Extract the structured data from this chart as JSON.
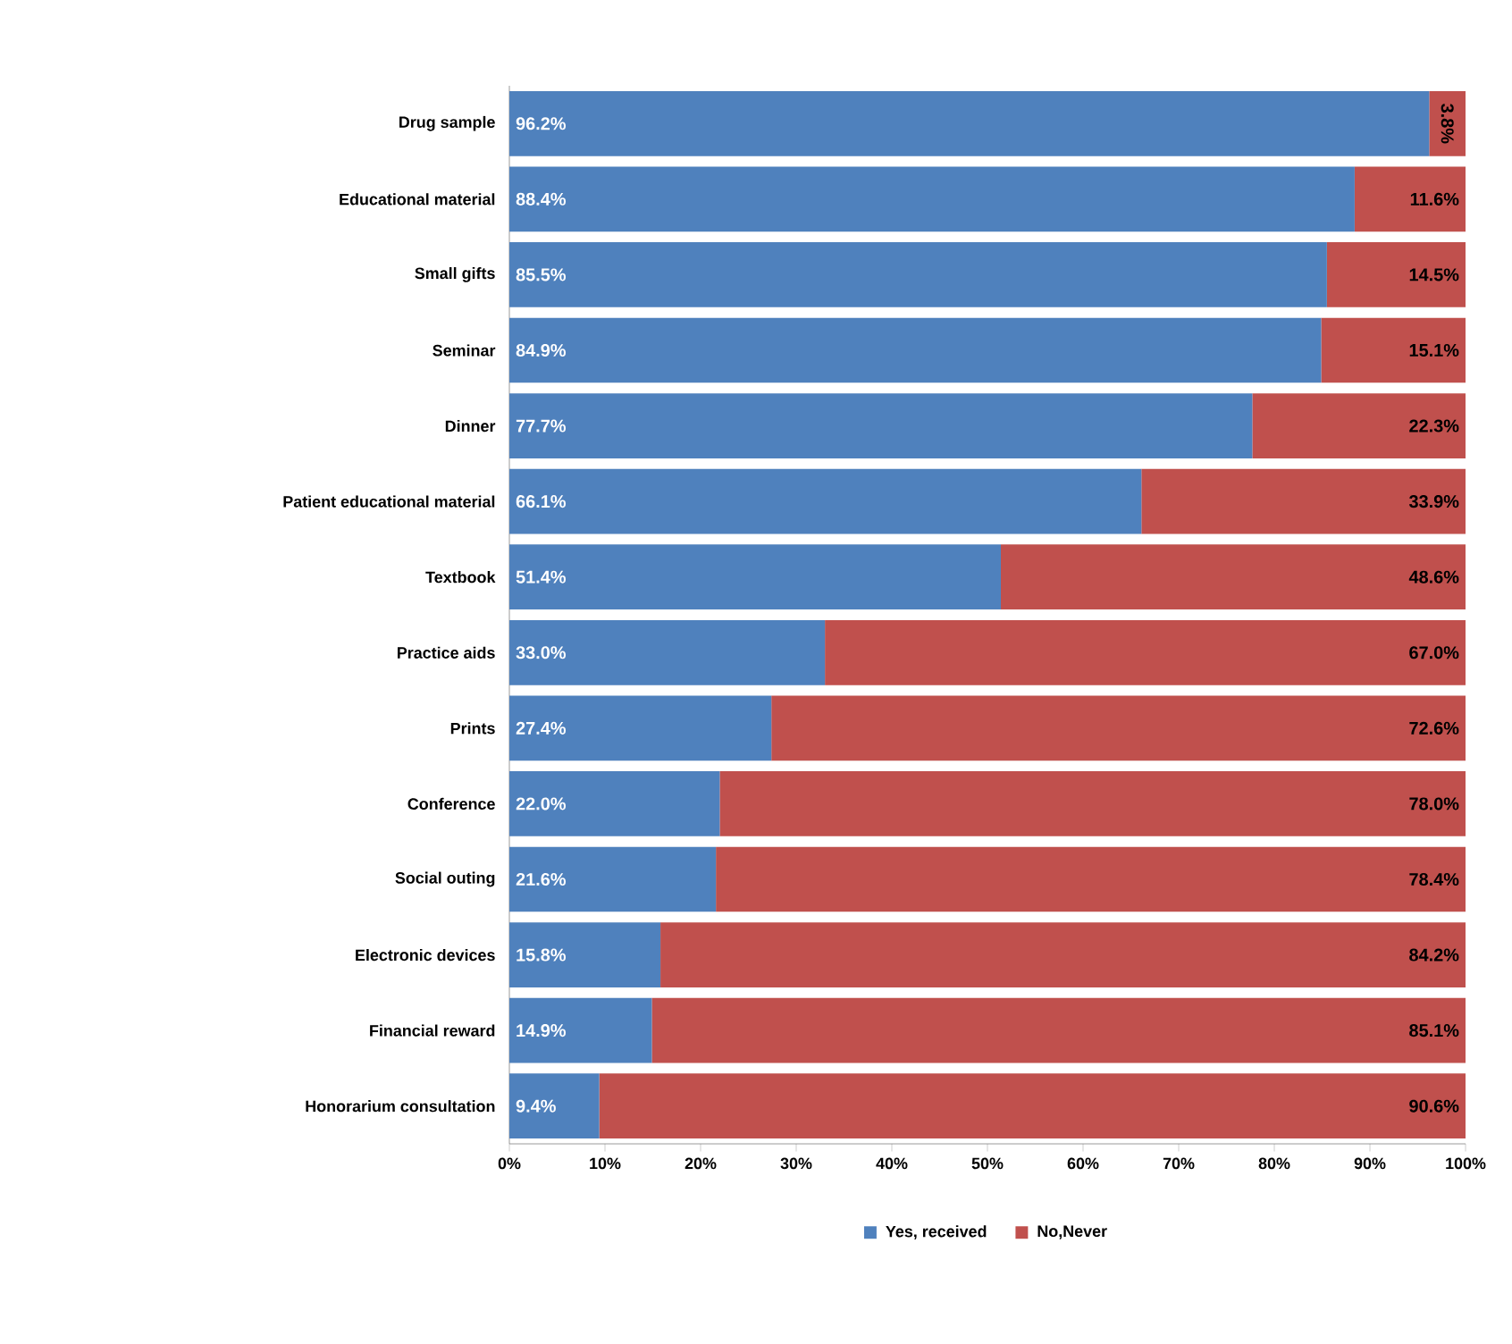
{
  "chart_data": {
    "type": "bar",
    "orientation": "horizontal",
    "stacked": true,
    "categories": [
      "Drug sample",
      "Educational material",
      "Small gifts",
      "Seminar",
      "Dinner",
      "Patient educational material",
      "Textbook",
      "Practice aids",
      "Prints",
      "Conference",
      "Social outing",
      "Electronic devices",
      "Financial reward",
      "Honorarium consultation"
    ],
    "series": [
      {
        "name": "Yes, received",
        "color": "#4f81bd",
        "values": [
          96.2,
          88.4,
          85.5,
          84.9,
          77.7,
          66.1,
          51.4,
          33.0,
          27.4,
          22.0,
          21.6,
          15.8,
          14.9,
          9.4
        ],
        "value_labels": [
          "96.2%",
          "88.4%",
          "85.5%",
          "84.9%",
          "77.7%",
          "66.1%",
          "51.4%",
          "33.0%",
          "27.4%",
          "22.0%",
          "21.6%",
          "15.8%",
          "14.9%",
          "9.4%"
        ]
      },
      {
        "name": "No,Never",
        "color": "#c0504d",
        "values": [
          3.8,
          11.6,
          14.5,
          15.1,
          22.3,
          33.9,
          48.6,
          67.0,
          72.6,
          78.0,
          78.4,
          84.2,
          85.1,
          90.6
        ],
        "value_labels": [
          "3.8%",
          "11.6%",
          "14.5%",
          "15.1%",
          "22.3%",
          "33.9%",
          "48.6%",
          "67.0%",
          "72.6%",
          "78.0%",
          "78.4%",
          "84.2%",
          "85.1%",
          "90.6%"
        ]
      }
    ],
    "xlim": [
      0,
      100
    ],
    "xticks": [
      {
        "value": 0,
        "label": "0%"
      },
      {
        "value": 10,
        "label": "10%"
      },
      {
        "value": 20,
        "label": "20%"
      },
      {
        "value": 30,
        "label": "30%"
      },
      {
        "value": 40,
        "label": "40%"
      },
      {
        "value": 50,
        "label": "50%"
      },
      {
        "value": 60,
        "label": "60%"
      },
      {
        "value": 70,
        "label": "70%"
      },
      {
        "value": 80,
        "label": "80%"
      },
      {
        "value": 90,
        "label": "90%"
      },
      {
        "value": 100,
        "label": "100%"
      }
    ],
    "grid": false,
    "legend": "bottom"
  }
}
